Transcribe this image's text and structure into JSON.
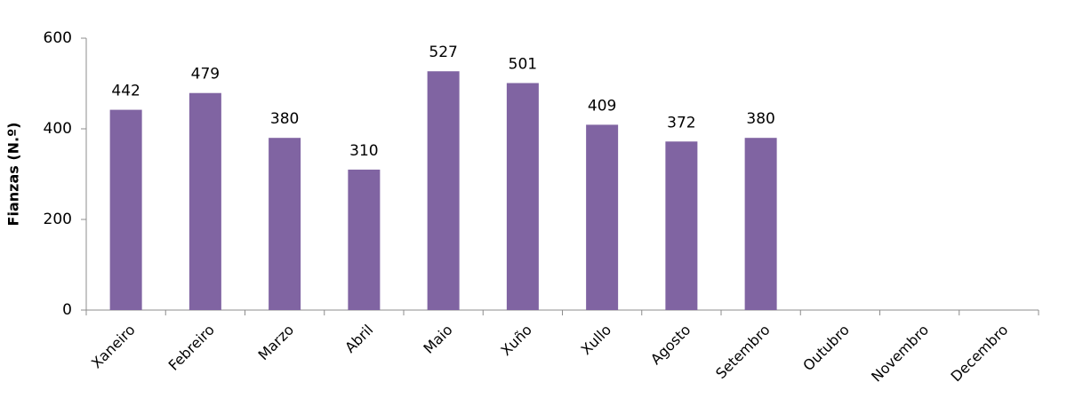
{
  "chart_data": {
    "type": "bar",
    "y_label": "Fianzas (N.º)",
    "categories": [
      "Xaneiro",
      "Febreiro",
      "Marzo",
      "Abril",
      "Maio",
      "Xuño",
      "Xullo",
      "Agosto",
      "Setembro",
      "Outubro",
      "Novembro",
      "Decembro"
    ],
    "values": [
      442,
      479,
      380,
      310,
      527,
      501,
      409,
      372,
      380,
      null,
      null,
      null
    ],
    "color": "#8064a2",
    "ylim": [
      0,
      600
    ],
    "yticks": [
      0,
      200,
      400,
      600
    ],
    "grid": false
  }
}
